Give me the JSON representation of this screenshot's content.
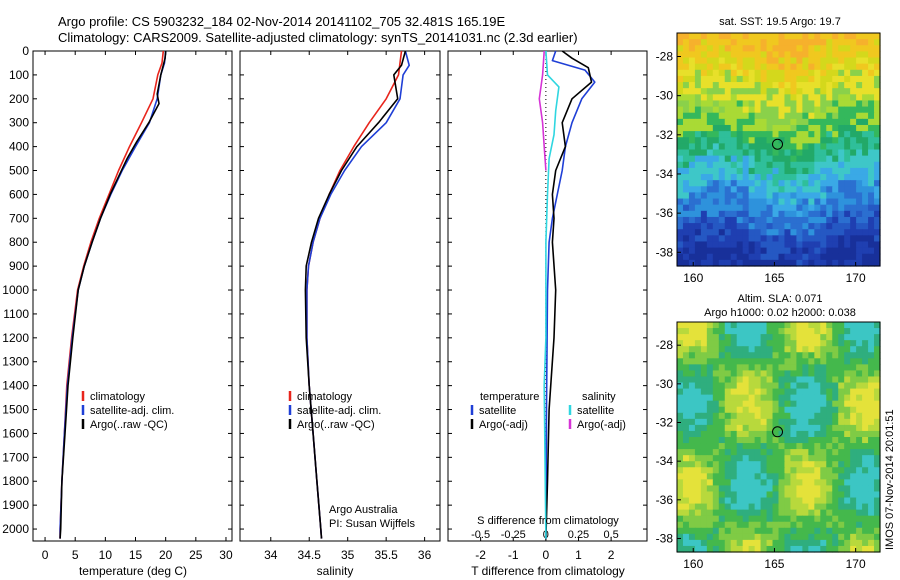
{
  "header": {
    "line1": "Argo profile: CS 5903232_184 02-Nov-2014 20141102_705 32.481S 165.19E",
    "line2": "Climatology: CARS2009. Satellite-adjusted climatology: synTS_20141031.nc (2.3d earlier)"
  },
  "colors": {
    "climatology": "#e8251c",
    "satellite": "#1f3fd6",
    "argo": "#000000",
    "sat_salinity": "#2fd6e0",
    "argo_salinity": "#d633d6"
  },
  "chart_data": [
    {
      "type": "line",
      "id": "temperature",
      "xlabel": "temperature (deg C)",
      "ylabel": "",
      "xlim": [
        -2,
        31
      ],
      "ylim": [
        2050,
        0
      ],
      "xticks": [
        "0",
        "5",
        "10",
        "15",
        "20",
        "25",
        "30"
      ],
      "yticks": [
        "0",
        "100",
        "200",
        "300",
        "400",
        "500",
        "600",
        "700",
        "800",
        "900",
        "1000",
        "1100",
        "1200",
        "1300",
        "1400",
        "1500",
        "1600",
        "1700",
        "1800",
        "1900",
        "2000"
      ],
      "legend": [
        "climatology",
        "satellite-adj. clim.",
        "Argo(..raw -QC)"
      ],
      "series": [
        {
          "name": "climatology",
          "color": "climatology",
          "points": [
            [
              19.6,
              0
            ],
            [
              19.4,
              50
            ],
            [
              18.7,
              100
            ],
            [
              17.9,
              200
            ],
            [
              16.0,
              300
            ],
            [
              14.0,
              400
            ],
            [
              12.2,
              500
            ],
            [
              10.6,
              600
            ],
            [
              9.0,
              700
            ],
            [
              7.6,
              800
            ],
            [
              6.4,
              900
            ],
            [
              5.4,
              1000
            ],
            [
              4.4,
              1200
            ],
            [
              3.6,
              1400
            ],
            [
              3.2,
              1600
            ],
            [
              2.8,
              1800
            ],
            [
              2.5,
              2000
            ],
            [
              2.5,
              2040
            ]
          ]
        },
        {
          "name": "satellite-adj. clim.",
          "color": "satellite",
          "points": [
            [
              20.0,
              0
            ],
            [
              19.8,
              50
            ],
            [
              19.2,
              100
            ],
            [
              18.6,
              200
            ],
            [
              17.3,
              300
            ],
            [
              15.0,
              400
            ],
            [
              12.8,
              500
            ],
            [
              10.9,
              600
            ],
            [
              9.2,
              700
            ],
            [
              7.8,
              800
            ],
            [
              6.5,
              900
            ],
            [
              5.5,
              1000
            ],
            [
              4.5,
              1200
            ],
            [
              3.7,
              1400
            ],
            [
              3.2,
              1600
            ],
            [
              2.8,
              1800
            ],
            [
              2.5,
              2000
            ],
            [
              2.5,
              2040
            ]
          ]
        },
        {
          "name": "Argo(..raw -QC)",
          "color": "argo",
          "points": [
            [
              20.0,
              0
            ],
            [
              19.9,
              30
            ],
            [
              19.2,
              100
            ],
            [
              18.6,
              180
            ],
            [
              18.9,
              220
            ],
            [
              17.2,
              300
            ],
            [
              15.2,
              380
            ],
            [
              13.6,
              450
            ],
            [
              12.3,
              520
            ],
            [
              10.8,
              600
            ],
            [
              9.2,
              700
            ],
            [
              7.8,
              800
            ],
            [
              6.5,
              900
            ],
            [
              5.5,
              1000
            ],
            [
              4.6,
              1200
            ],
            [
              3.8,
              1400
            ],
            [
              3.3,
              1600
            ],
            [
              2.8,
              1800
            ],
            [
              2.6,
              2000
            ],
            [
              2.5,
              2040
            ]
          ]
        }
      ]
    },
    {
      "type": "line",
      "id": "salinity",
      "xlabel": "salinity",
      "xlim": [
        33.6,
        36.2
      ],
      "ylim": [
        2050,
        0
      ],
      "xticks": [
        "34",
        "34.5",
        "35",
        "35.5",
        "36"
      ],
      "legend": [
        "climatology",
        "satellite-adj. clim.",
        "Argo(..raw -QC)"
      ],
      "annotation": [
        "Argo Australia",
        "PI: Susan Wijffels"
      ],
      "series": [
        {
          "name": "climatology",
          "color": "climatology",
          "points": [
            [
              35.7,
              0
            ],
            [
              35.66,
              100
            ],
            [
              35.5,
              200
            ],
            [
              35.28,
              300
            ],
            [
              35.08,
              400
            ],
            [
              34.9,
              500
            ],
            [
              34.76,
              600
            ],
            [
              34.64,
              700
            ],
            [
              34.55,
              800
            ],
            [
              34.49,
              900
            ],
            [
              34.47,
              1000
            ],
            [
              34.47,
              1200
            ],
            [
              34.5,
              1400
            ],
            [
              34.55,
              1600
            ],
            [
              34.6,
              1800
            ],
            [
              34.65,
              2000
            ],
            [
              34.66,
              2040
            ]
          ]
        },
        {
          "name": "satellite-adj. clim.",
          "color": "satellite",
          "points": [
            [
              35.75,
              0
            ],
            [
              35.8,
              60
            ],
            [
              35.72,
              100
            ],
            [
              35.68,
              200
            ],
            [
              35.5,
              300
            ],
            [
              35.18,
              400
            ],
            [
              34.96,
              500
            ],
            [
              34.78,
              600
            ],
            [
              34.64,
              700
            ],
            [
              34.55,
              800
            ],
            [
              34.49,
              900
            ],
            [
              34.47,
              1000
            ],
            [
              34.47,
              1200
            ],
            [
              34.5,
              1400
            ],
            [
              34.55,
              1600
            ],
            [
              34.6,
              1800
            ],
            [
              34.65,
              2000
            ],
            [
              34.66,
              2040
            ]
          ]
        },
        {
          "name": "Argo(..raw -QC)",
          "color": "argo",
          "points": [
            [
              35.75,
              0
            ],
            [
              35.7,
              60
            ],
            [
              35.6,
              100
            ],
            [
              35.65,
              200
            ],
            [
              35.4,
              300
            ],
            [
              35.12,
              400
            ],
            [
              34.92,
              500
            ],
            [
              34.76,
              600
            ],
            [
              34.62,
              700
            ],
            [
              34.53,
              800
            ],
            [
              34.46,
              900
            ],
            [
              34.45,
              1000
            ],
            [
              34.46,
              1200
            ],
            [
              34.5,
              1400
            ],
            [
              34.55,
              1600
            ],
            [
              34.6,
              1800
            ],
            [
              34.65,
              2000
            ],
            [
              34.66,
              2040
            ]
          ]
        }
      ]
    },
    {
      "type": "line",
      "id": "difference",
      "xlabel": "T difference from climatology",
      "xlabel_top": "S difference from climatology",
      "xlim": [
        -3,
        3.1
      ],
      "ylim": [
        2050,
        0
      ],
      "xticks": [
        "-2",
        "-1",
        "0",
        "1",
        "2"
      ],
      "xticks_top": [
        "-0.5",
        "-0.25",
        "0",
        "0.25",
        "0.5"
      ],
      "legend_groups": [
        {
          "title": "temperature",
          "items": [
            "satellite",
            "Argo(-adj)"
          ]
        },
        {
          "title": "salinity",
          "items": [
            "satellite",
            "Argo(-adj)"
          ]
        }
      ],
      "series": [
        {
          "name": "satellite",
          "group": "temperature",
          "color": "satellite",
          "points": [
            [
              0.3,
              0
            ],
            [
              0.2,
              40
            ],
            [
              1.2,
              80
            ],
            [
              1.5,
              130
            ],
            [
              1.1,
              200
            ],
            [
              0.8,
              300
            ],
            [
              0.6,
              400
            ],
            [
              0.5,
              500
            ],
            [
              0.35,
              600
            ],
            [
              0.2,
              700
            ],
            [
              0.1,
              800
            ],
            [
              0.05,
              1000
            ],
            [
              0.02,
              1500
            ],
            [
              0.0,
              2040
            ]
          ]
        },
        {
          "name": "Argo(-adj)",
          "group": "temperature",
          "color": "argo",
          "points": [
            [
              0.5,
              0
            ],
            [
              0.8,
              30
            ],
            [
              1.3,
              70
            ],
            [
              1.4,
              130
            ],
            [
              0.8,
              200
            ],
            [
              0.5,
              300
            ],
            [
              0.6,
              400
            ],
            [
              0.3,
              500
            ],
            [
              0.2,
              600
            ],
            [
              0.25,
              700
            ],
            [
              0.2,
              800
            ],
            [
              0.3,
              1000
            ],
            [
              0.25,
              1200
            ],
            [
              0.1,
              1500
            ],
            [
              0.05,
              1800
            ],
            [
              0.0,
              2040
            ]
          ]
        },
        {
          "name": "satellite",
          "group": "salinity",
          "color": "sat_salinity",
          "points": [
            [
              0.0,
              0
            ],
            [
              0.05,
              100
            ],
            [
              0.4,
              150
            ],
            [
              0.3,
              250
            ],
            [
              0.25,
              350
            ],
            [
              0.1,
              450
            ],
            [
              0.05,
              600
            ],
            [
              0.0,
              800
            ],
            [
              0.0,
              1200
            ],
            [
              -0.05,
              1400
            ],
            [
              0.0,
              2040
            ]
          ]
        },
        {
          "name": "Argo(-adj)",
          "group": "salinity",
          "color": "argo_salinity",
          "points": [
            [
              -0.05,
              0
            ],
            [
              -0.1,
              100
            ],
            [
              -0.2,
              200
            ],
            [
              -0.1,
              300
            ],
            [
              -0.05,
              400
            ],
            [
              0.0,
              500
            ]
          ]
        }
      ]
    },
    {
      "type": "heatmap",
      "id": "sst-map",
      "title": "sat. SST: 19.5 Argo: 19.7",
      "xticks": [
        "160",
        "165",
        "170"
      ],
      "yticks": [
        "-28",
        "-30",
        "-32",
        "-34",
        "-36",
        "-38"
      ],
      "xlim": [
        159,
        171.5
      ],
      "ylim": [
        -38.7,
        -26.8
      ],
      "marker": [
        165.19,
        -32.48
      ]
    },
    {
      "type": "heatmap",
      "id": "sla-map",
      "title_line1": "Altim. SLA: 0.071",
      "title_line2": "Argo h1000: 0.02 h2000: 0.038",
      "xticks": [
        "160",
        "165",
        "170"
      ],
      "yticks": [
        "-28",
        "-30",
        "-32",
        "-34",
        "-36",
        "-38"
      ],
      "xlim": [
        159,
        171.5
      ],
      "ylim": [
        -38.7,
        -26.8
      ],
      "marker": [
        165.19,
        -32.48
      ]
    }
  ],
  "footer_vertical": "IMOS 07-Nov-2014 20:01:51"
}
